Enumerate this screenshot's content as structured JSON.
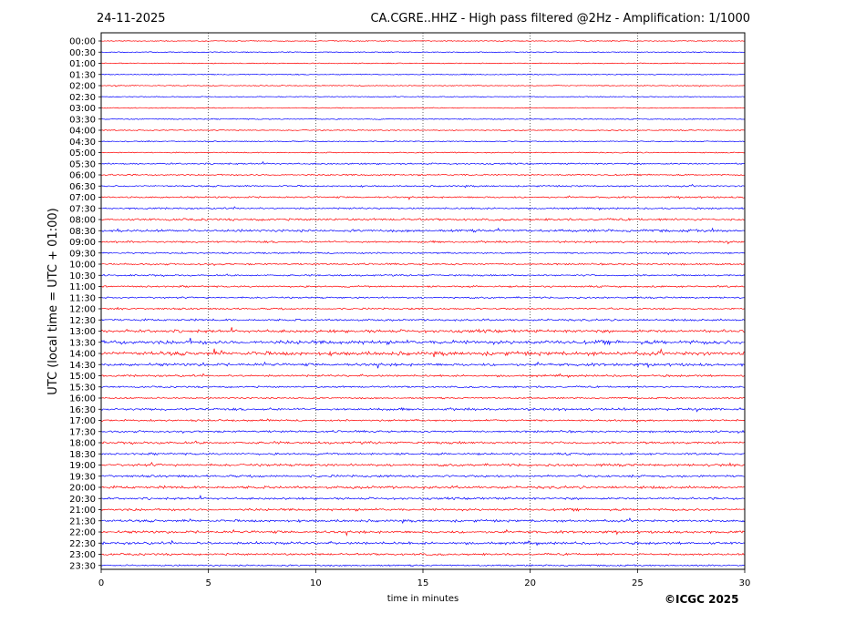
{
  "header": {
    "date": "24-11-2025",
    "title": "CA.CGRE..HHZ - High pass filtered @2Hz - Amplification: 1/1000"
  },
  "footer": {
    "copyright": "©ICGC 2025"
  },
  "colors": {
    "trace_odd": "#ff0000",
    "trace_even": "#0000ff",
    "frame": "#000000",
    "grid": "#000000"
  },
  "chart_data": {
    "type": "line",
    "xlabel": "time in minutes",
    "ylabel": "UTC (local time = UTC + 01:00)",
    "xlim": [
      0,
      30
    ],
    "x_ticks": [
      0,
      5,
      10,
      15,
      20,
      25,
      30
    ],
    "grid": "vertical dotted at x ticks",
    "series_colors_alternate": [
      "red",
      "blue"
    ],
    "rows": [
      {
        "label": "00:00",
        "activity": 0.1
      },
      {
        "label": "00:30",
        "activity": 0.1
      },
      {
        "label": "01:00",
        "activity": 0.1
      },
      {
        "label": "01:30",
        "activity": 0.15
      },
      {
        "label": "02:00",
        "activity": 0.1
      },
      {
        "label": "02:30",
        "activity": 0.1
      },
      {
        "label": "03:00",
        "activity": 0.1
      },
      {
        "label": "03:30",
        "activity": 0.15
      },
      {
        "label": "04:00",
        "activity": 0.15
      },
      {
        "label": "04:30",
        "activity": 0.15
      },
      {
        "label": "05:00",
        "activity": 0.15
      },
      {
        "label": "05:30",
        "activity": 0.3
      },
      {
        "label": "06:00",
        "activity": 0.3
      },
      {
        "label": "06:30",
        "activity": 0.3
      },
      {
        "label": "07:00",
        "activity": 0.35
      },
      {
        "label": "07:30",
        "activity": 0.35
      },
      {
        "label": "08:00",
        "activity": 0.5
      },
      {
        "label": "08:30",
        "activity": 0.6
      },
      {
        "label": "09:00",
        "activity": 0.45
      },
      {
        "label": "09:30",
        "activity": 0.3
      },
      {
        "label": "10:00",
        "activity": 0.35
      },
      {
        "label": "10:30",
        "activity": 0.35
      },
      {
        "label": "11:00",
        "activity": 0.35
      },
      {
        "label": "11:30",
        "activity": 0.35
      },
      {
        "label": "12:00",
        "activity": 0.35
      },
      {
        "label": "12:30",
        "activity": 0.45
      },
      {
        "label": "13:00",
        "activity": 0.75
      },
      {
        "label": "13:30",
        "activity": 1.0
      },
      {
        "label": "14:00",
        "activity": 1.0
      },
      {
        "label": "14:30",
        "activity": 0.7
      },
      {
        "label": "15:00",
        "activity": 0.45
      },
      {
        "label": "15:30",
        "activity": 0.35
      },
      {
        "label": "16:00",
        "activity": 0.3
      },
      {
        "label": "16:30",
        "activity": 0.6
      },
      {
        "label": "17:00",
        "activity": 0.4
      },
      {
        "label": "17:30",
        "activity": 0.45
      },
      {
        "label": "18:00",
        "activity": 0.55
      },
      {
        "label": "18:30",
        "activity": 0.45
      },
      {
        "label": "19:00",
        "activity": 0.6
      },
      {
        "label": "19:30",
        "activity": 0.55
      },
      {
        "label": "20:00",
        "activity": 0.65
      },
      {
        "label": "20:30",
        "activity": 0.5
      },
      {
        "label": "21:00",
        "activity": 0.55
      },
      {
        "label": "21:30",
        "activity": 0.55
      },
      {
        "label": "22:00",
        "activity": 0.6
      },
      {
        "label": "22:30",
        "activity": 0.6
      },
      {
        "label": "23:00",
        "activity": 0.45
      },
      {
        "label": "23:30",
        "activity": 0.3
      }
    ]
  }
}
